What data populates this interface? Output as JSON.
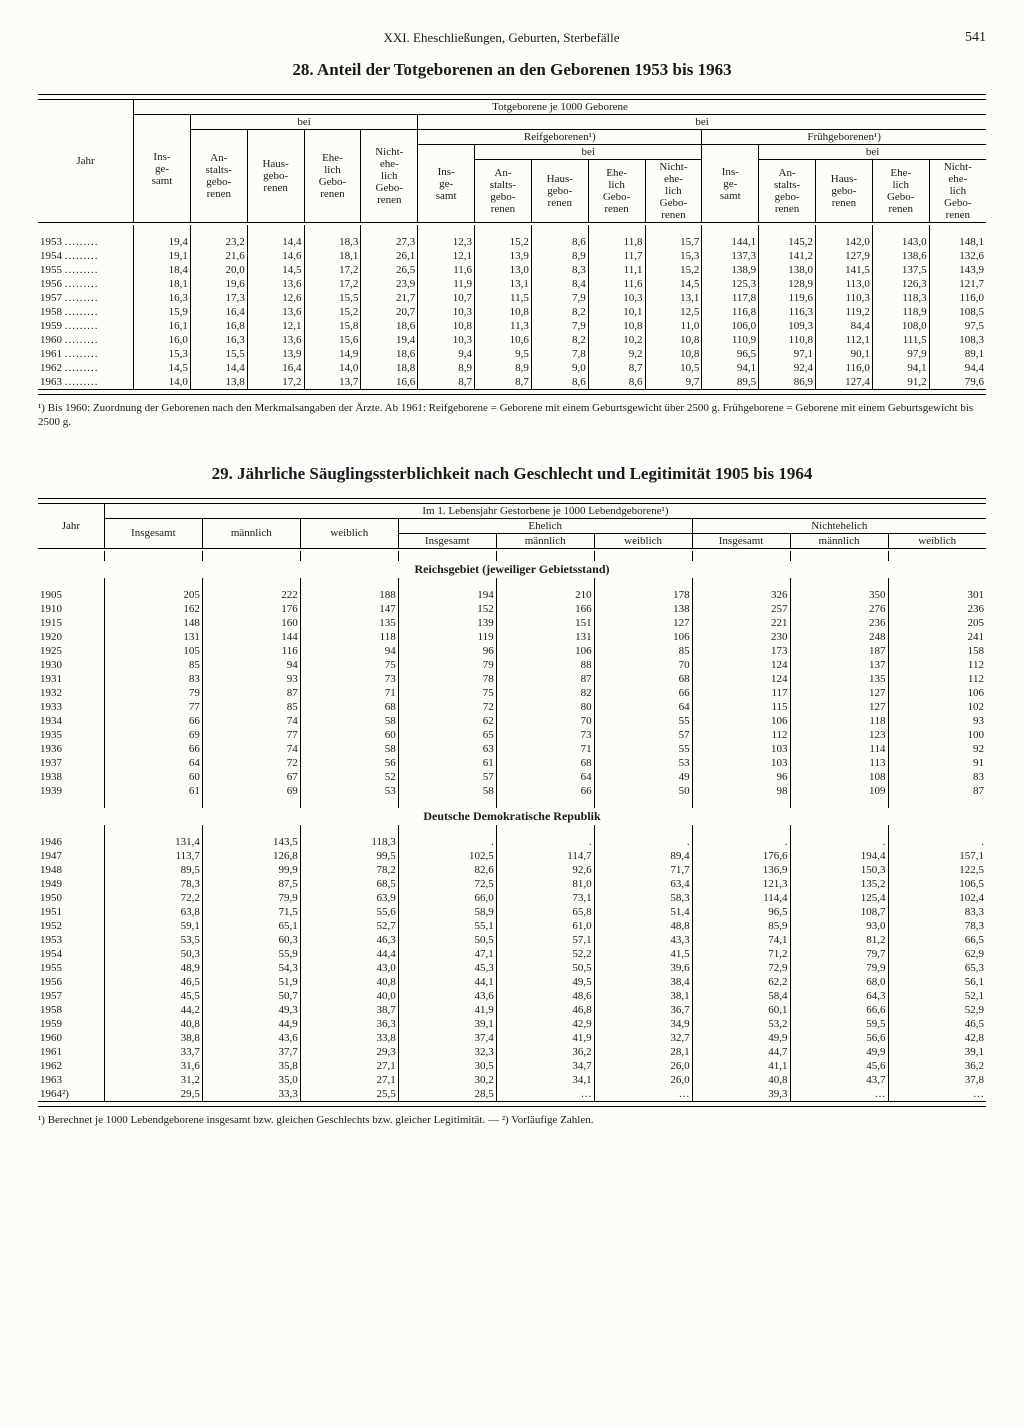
{
  "page": {
    "chapter": "XXI. Eheschließungen, Geburten, Sterbefälle",
    "number": "541"
  },
  "table28": {
    "title": "28. Anteil der Totgeborenen an den Geborenen 1953 bis 1963",
    "superhead": "Totgeborene je 1000 Geborene",
    "head_bei": "bei",
    "head_jahr": "Jahr",
    "head_insgesamt": "Ins-\nge-\nsamt",
    "head_anstalt": "An-\nstalts-\ngebo-\nrenen",
    "head_haus": "Haus-\ngebo-\nrenen",
    "head_ehelich": "Ehe-\nlich\nGebo-\nrenen",
    "head_nichtehe": "Nicht-\nehe-\nlich\nGebo-\nrenen",
    "head_reif": "Reifgeborenen¹)",
    "head_frueh": "Frühgeborenen¹)",
    "rows": [
      [
        "1953",
        "19,4",
        "23,2",
        "14,4",
        "18,3",
        "27,3",
        "12,3",
        "15,2",
        "8,6",
        "11,8",
        "15,7",
        "144,1",
        "145,2",
        "142,0",
        "143,0",
        "148,1"
      ],
      [
        "1954",
        "19,1",
        "21,6",
        "14,6",
        "18,1",
        "26,1",
        "12,1",
        "13,9",
        "8,9",
        "11,7",
        "15,3",
        "137,3",
        "141,2",
        "127,9",
        "138,6",
        "132,6"
      ],
      [
        "1955",
        "18,4",
        "20,0",
        "14,5",
        "17,2",
        "26,5",
        "11,6",
        "13,0",
        "8,3",
        "11,1",
        "15,2",
        "138,9",
        "138,0",
        "141,5",
        "137,5",
        "143,9"
      ],
      [
        "1956",
        "18,1",
        "19,6",
        "13,6",
        "17,2",
        "23,9",
        "11,9",
        "13,1",
        "8,4",
        "11,6",
        "14,5",
        "125,3",
        "128,9",
        "113,0",
        "126,3",
        "121,7"
      ],
      [
        "1957",
        "16,3",
        "17,3",
        "12,6",
        "15,5",
        "21,7",
        "10,7",
        "11,5",
        "7,9",
        "10,3",
        "13,1",
        "117,8",
        "119,6",
        "110,3",
        "118,3",
        "116,0"
      ],
      [
        "1958",
        "15,9",
        "16,4",
        "13,6",
        "15,2",
        "20,7",
        "10,3",
        "10,8",
        "8,2",
        "10,1",
        "12,5",
        "116,8",
        "116,3",
        "119,2",
        "118,9",
        "108,5"
      ],
      [
        "1959",
        "16,1",
        "16,8",
        "12,1",
        "15,8",
        "18,6",
        "10,8",
        "11,3",
        "7,9",
        "10,8",
        "11,0",
        "106,0",
        "109,3",
        "84,4",
        "108,0",
        "97,5"
      ],
      [
        "1960",
        "16,0",
        "16,3",
        "13,6",
        "15,6",
        "19,4",
        "10,3",
        "10,6",
        "8,2",
        "10,2",
        "10,8",
        "110,9",
        "110,8",
        "112,1",
        "111,5",
        "108,3"
      ],
      [
        "1961",
        "15,3",
        "15,5",
        "13,9",
        "14,9",
        "18,6",
        "9,4",
        "9,5",
        "7,8",
        "9,2",
        "10,8",
        "96,5",
        "97,1",
        "90,1",
        "97,9",
        "89,1"
      ],
      [
        "1962",
        "14,5",
        "14,4",
        "16,4",
        "14,0",
        "18,8",
        "8,9",
        "8,9",
        "9,0",
        "8,7",
        "10,5",
        "94,1",
        "92,4",
        "116,0",
        "94,1",
        "94,4"
      ],
      [
        "1963",
        "14,0",
        "13,8",
        "17,2",
        "13,7",
        "16,6",
        "8,7",
        "8,7",
        "8,6",
        "8,6",
        "9,7",
        "89,5",
        "86,9",
        "127,4",
        "91,2",
        "79,6"
      ]
    ],
    "footnote": "¹) Bis 1960: Zuordnung der Geborenen nach den Merkmalsangaben der Ärzte. Ab 1961: Reifgeborene = Geborene mit einem Geburtsgewicht über 2500 g. Frühgeborene = Geborene mit einem Geburtsgewicht bis 2500 g."
  },
  "table29": {
    "title": "29. Jährliche Säuglingssterblichkeit nach Geschlecht und Legitimität 1905 bis 1964",
    "superhead": "Im 1. Lebensjahr Gestorbene je 1000 Lebendgeborene¹)",
    "head_jahr": "Jahr",
    "head_insgesamt": "Insgesamt",
    "head_maennlich": "männlich",
    "head_weiblich": "weiblich",
    "head_ehelich": "Ehelich",
    "head_nichtehe": "Nichtehelich",
    "section_reich": "Reichsgebiet (jeweiliger Gebietsstand)",
    "section_ddr": "Deutsche Demokratische Republik",
    "rows_reich": [
      [
        "1905",
        "205",
        "222",
        "188",
        "194",
        "210",
        "178",
        "326",
        "350",
        "301"
      ],
      [
        "1910",
        "162",
        "176",
        "147",
        "152",
        "166",
        "138",
        "257",
        "276",
        "236"
      ],
      [
        "1915",
        "148",
        "160",
        "135",
        "139",
        "151",
        "127",
        "221",
        "236",
        "205"
      ],
      [
        "1920",
        "131",
        "144",
        "118",
        "119",
        "131",
        "106",
        "230",
        "248",
        "241"
      ],
      [
        "1925",
        "105",
        "116",
        "94",
        "96",
        "106",
        "85",
        "173",
        "187",
        "158"
      ],
      [
        "1930",
        "85",
        "94",
        "75",
        "79",
        "88",
        "70",
        "124",
        "137",
        "112"
      ],
      [
        "1931",
        "83",
        "93",
        "73",
        "78",
        "87",
        "68",
        "124",
        "135",
        "112"
      ],
      [
        "1932",
        "79",
        "87",
        "71",
        "75",
        "82",
        "66",
        "117",
        "127",
        "106"
      ],
      [
        "1933",
        "77",
        "85",
        "68",
        "72",
        "80",
        "64",
        "115",
        "127",
        "102"
      ],
      [
        "1934",
        "66",
        "74",
        "58",
        "62",
        "70",
        "55",
        "106",
        "118",
        "93"
      ],
      [
        "1935",
        "69",
        "77",
        "60",
        "65",
        "73",
        "57",
        "112",
        "123",
        "100"
      ],
      [
        "1936",
        "66",
        "74",
        "58",
        "63",
        "71",
        "55",
        "103",
        "114",
        "92"
      ],
      [
        "1937",
        "64",
        "72",
        "56",
        "61",
        "68",
        "53",
        "103",
        "113",
        "91"
      ],
      [
        "1938",
        "60",
        "67",
        "52",
        "57",
        "64",
        "49",
        "96",
        "108",
        "83"
      ],
      [
        "1939",
        "61",
        "69",
        "53",
        "58",
        "66",
        "50",
        "98",
        "109",
        "87"
      ]
    ],
    "rows_ddr": [
      [
        "1946",
        "131,4",
        "143,5",
        "118,3",
        ".",
        ".",
        ".",
        ".",
        ".",
        "."
      ],
      [
        "1947",
        "113,7",
        "126,8",
        "99,5",
        "102,5",
        "114,7",
        "89,4",
        "176,6",
        "194,4",
        "157,1"
      ],
      [
        "1948",
        "89,5",
        "99,9",
        "78,2",
        "82,6",
        "92,6",
        "71,7",
        "136,9",
        "150,3",
        "122,5"
      ],
      [
        "1949",
        "78,3",
        "87,5",
        "68,5",
        "72,5",
        "81,0",
        "63,4",
        "121,3",
        "135,2",
        "106,5"
      ],
      [
        "1950",
        "72,2",
        "79,9",
        "63,9",
        "66,0",
        "73,1",
        "58,3",
        "114,4",
        "125,4",
        "102,4"
      ],
      [
        "1951",
        "63,8",
        "71,5",
        "55,6",
        "58,9",
        "65,8",
        "51,4",
        "96,5",
        "108,7",
        "83,3"
      ],
      [
        "1952",
        "59,1",
        "65,1",
        "52,7",
        "55,1",
        "61,0",
        "48,8",
        "85,9",
        "93,0",
        "78,3"
      ],
      [
        "1953",
        "53,5",
        "60,3",
        "46,3",
        "50,5",
        "57,1",
        "43,3",
        "74,1",
        "81,2",
        "66,5"
      ],
      [
        "1954",
        "50,3",
        "55,9",
        "44,4",
        "47,1",
        "52,2",
        "41,5",
        "71,2",
        "79,7",
        "62,9"
      ],
      [
        "1955",
        "48,9",
        "54,3",
        "43,0",
        "45,3",
        "50,5",
        "39,6",
        "72,9",
        "79,9",
        "65,3"
      ],
      [
        "1956",
        "46,5",
        "51,9",
        "40,8",
        "44,1",
        "49,5",
        "38,4",
        "62,2",
        "68,0",
        "56,1"
      ],
      [
        "1957",
        "45,5",
        "50,7",
        "40,0",
        "43,6",
        "48,6",
        "38,1",
        "58,4",
        "64,3",
        "52,1"
      ],
      [
        "1958",
        "44,2",
        "49,3",
        "38,7",
        "41,9",
        "46,8",
        "36,7",
        "60,1",
        "66,6",
        "52,9"
      ],
      [
        "1959",
        "40,8",
        "44,9",
        "36,3",
        "39,1",
        "42,9",
        "34,9",
        "53,2",
        "59,5",
        "46,5"
      ],
      [
        "1960",
        "38,8",
        "43,6",
        "33,8",
        "37,4",
        "41,9",
        "32,7",
        "49,9",
        "56,6",
        "42,8"
      ],
      [
        "1961",
        "33,7",
        "37,7",
        "29,3",
        "32,3",
        "36,2",
        "28,1",
        "44,7",
        "49,9",
        "39,1"
      ],
      [
        "1962",
        "31,6",
        "35,8",
        "27,1",
        "30,5",
        "34,7",
        "26,0",
        "41,1",
        "45,6",
        "36,2"
      ],
      [
        "1963",
        "31,2",
        "35,0",
        "27,1",
        "30,2",
        "34,1",
        "26,0",
        "40,8",
        "43,7",
        "37,8"
      ],
      [
        "1964²)",
        "29,5",
        "33,3",
        "25,5",
        "28,5",
        "…",
        "…",
        "39,3",
        "…",
        "…"
      ]
    ],
    "footnote": "¹) Berechnet je 1000 Lebendgeborene insgesamt bzw. gleichen Geschlechts bzw. gleicher Legitimität. — ²) Vorläufige Zahlen."
  }
}
